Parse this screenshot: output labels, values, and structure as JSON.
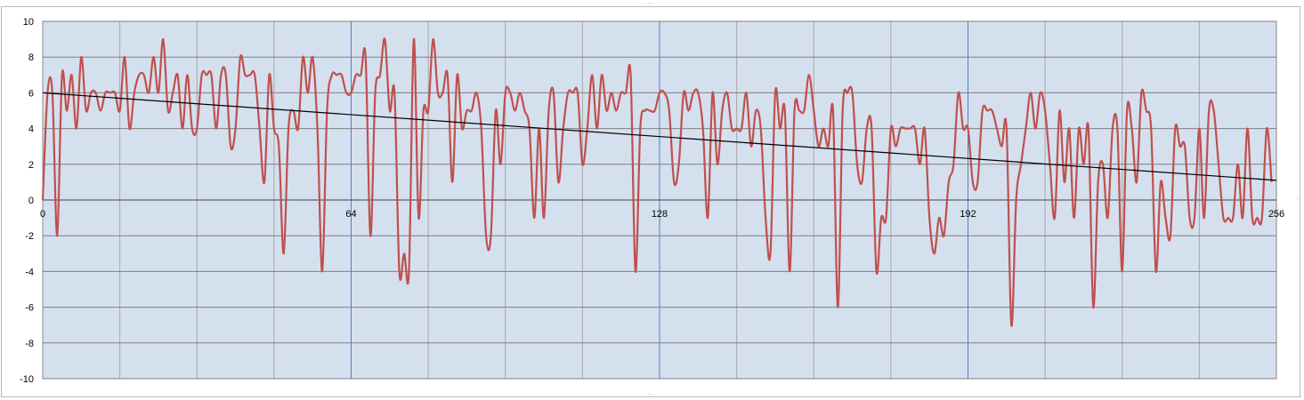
{
  "chart_data": {
    "type": "line",
    "title": "",
    "xlabel": "",
    "ylabel": "",
    "xlim": [
      0,
      256
    ],
    "ylim": [
      -10,
      10
    ],
    "x_ticks": [
      0,
      64,
      128,
      192,
      256
    ],
    "x_tick_labels": [
      "0",
      "64",
      "128",
      "192",
      "256"
    ],
    "y_ticks": [
      -10,
      -8,
      -6,
      -4,
      -2,
      0,
      2,
      4,
      6,
      8,
      10
    ],
    "y_tick_labels": [
      "-10",
      "-8",
      "-6",
      "-4",
      "-2",
      "0",
      "2",
      "4",
      "6",
      "8",
      "10"
    ],
    "x_minor_step": 16,
    "grid": true,
    "legend": "none",
    "series": [
      {
        "type": "line",
        "color": "#c0504d",
        "x_start": 0,
        "x_step": 1,
        "y": [
          0,
          6,
          6,
          -2,
          7,
          5,
          7,
          4,
          8,
          5,
          6,
          6,
          5,
          6,
          6,
          6,
          5,
          8,
          4,
          6,
          7,
          7,
          6,
          8,
          6,
          9,
          5,
          6,
          7,
          4,
          7,
          4,
          4,
          7,
          7,
          7,
          4,
          7,
          7,
          3,
          4,
          8,
          7,
          7,
          7,
          4,
          1,
          7,
          4,
          3,
          -3,
          4,
          5,
          4,
          8,
          6,
          8,
          4,
          -4,
          5,
          7,
          7,
          7,
          6,
          6,
          7,
          7,
          8,
          -2,
          6,
          7,
          9,
          5,
          6,
          -4,
          -3,
          -4,
          9,
          -1,
          5,
          5,
          9,
          6,
          6,
          7,
          1,
          7,
          4,
          5,
          5,
          6,
          4,
          -2,
          -2,
          5,
          2,
          6,
          6,
          5,
          6,
          5,
          4,
          -1,
          4,
          -1,
          5,
          6,
          1,
          4,
          6,
          6,
          6,
          2,
          4,
          7,
          4,
          7,
          5,
          6,
          5,
          6,
          6,
          7,
          -4,
          4,
          5,
          5,
          5,
          6,
          6,
          5,
          1,
          2,
          6,
          5,
          6,
          6,
          4,
          -1,
          6,
          2,
          5,
          6,
          4,
          4,
          4,
          6,
          3,
          5,
          4,
          -1,
          -3,
          6,
          4,
          5,
          -4,
          5,
          5,
          5,
          7,
          5,
          3,
          4,
          3,
          5,
          -6,
          5,
          6,
          6,
          2,
          1,
          4,
          4,
          -4,
          -1,
          -1,
          4,
          3,
          4,
          4,
          4,
          4,
          2,
          4,
          -1,
          -3,
          -1,
          -2,
          1,
          2,
          6,
          4,
          4,
          1,
          1,
          5,
          5,
          5,
          4,
          3,
          4,
          -7,
          0,
          2,
          4,
          6,
          4,
          6,
          5,
          2,
          -1,
          5,
          1,
          4,
          -1,
          4,
          2,
          4,
          -6,
          1,
          2,
          -1,
          4,
          4,
          -4,
          5,
          4,
          1,
          6,
          5,
          4,
          -4,
          1,
          -1,
          -2,
          4,
          3,
          3,
          -1,
          -1,
          4,
          -1,
          5,
          5,
          2,
          -1,
          -1,
          -1,
          2,
          -1,
          4,
          -1,
          -1,
          -1,
          4,
          1
        ]
      },
      {
        "type": "linear-trendline",
        "color": "#000000",
        "x": [
          0,
          256
        ],
        "y": [
          6.0,
          1.1
        ]
      }
    ]
  }
}
